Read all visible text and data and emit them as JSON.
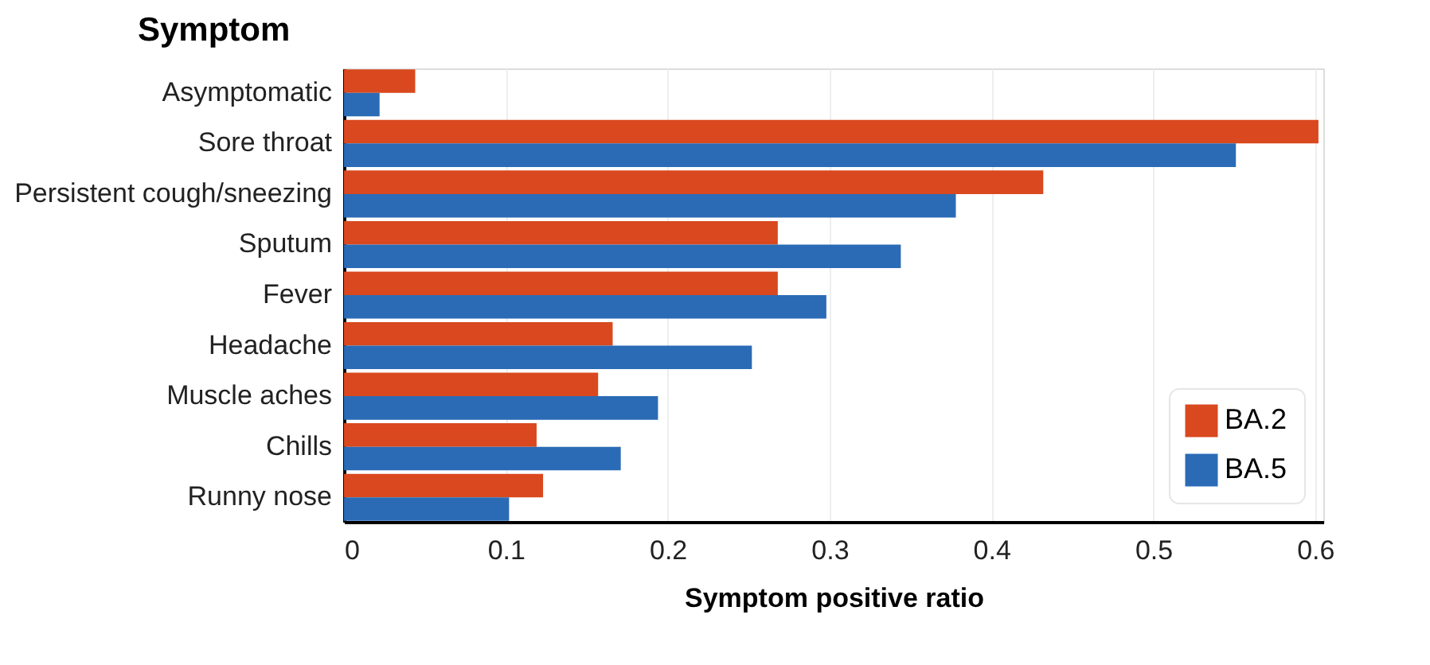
{
  "chart_data": {
    "type": "bar",
    "orientation": "horizontal",
    "ylabel": "Symptom",
    "xlabel": "Symptom positive ratio",
    "categories": [
      "Asymptomatic",
      "Sore throat",
      "Persistent cough/sneezing",
      "Sputum",
      "Fever",
      "Headache",
      "Muscle aches",
      "Chills",
      "Runny nose"
    ],
    "series": [
      {
        "name": "BA.2",
        "color": "#d9481e",
        "values": [
          0.044,
          0.602,
          0.432,
          0.268,
          0.268,
          0.166,
          0.157,
          0.119,
          0.123
        ]
      },
      {
        "name": "BA.5",
        "color": "#2b6bb5",
        "values": [
          0.022,
          0.551,
          0.378,
          0.344,
          0.298,
          0.252,
          0.194,
          0.171,
          0.102
        ]
      }
    ],
    "xlim": [
      0,
      0.605
    ],
    "xticks": [
      0,
      0.1,
      0.2,
      0.3,
      0.4,
      0.5,
      0.6
    ],
    "grid": "x",
    "legend": "bottom right"
  }
}
